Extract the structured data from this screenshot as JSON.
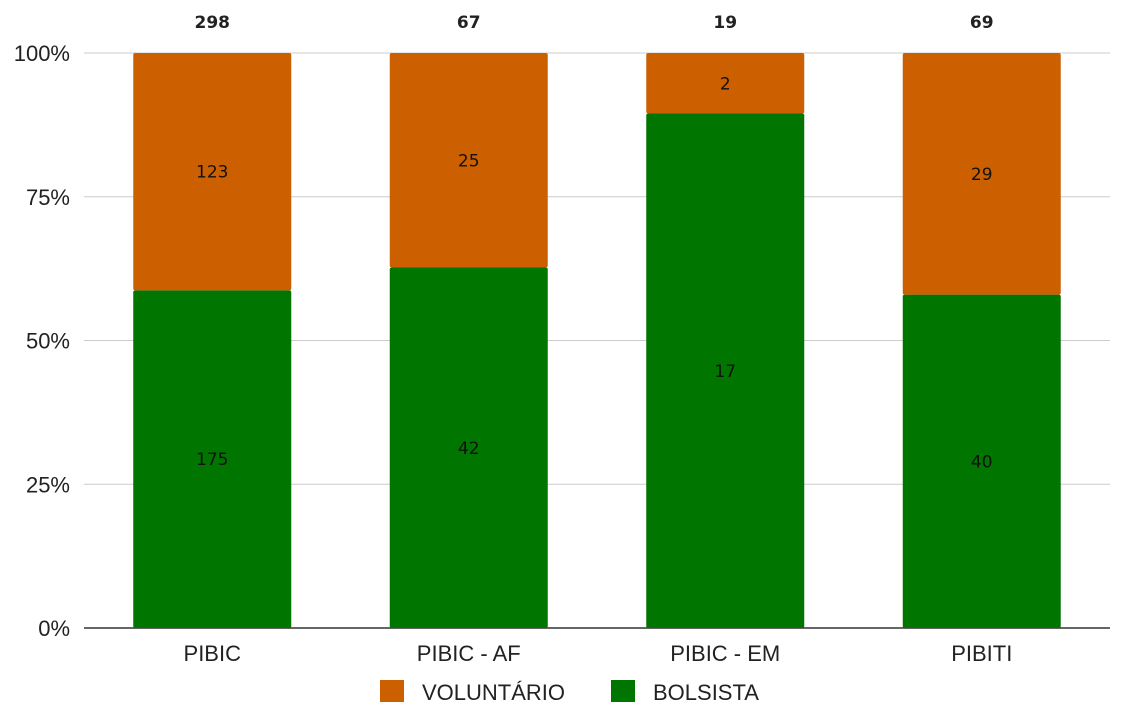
{
  "chart_data": {
    "type": "bar",
    "stacked": "percent",
    "title": "",
    "xlabel": "",
    "ylabel": "",
    "categories": [
      "PIBIC",
      "PIBIC - AF",
      "PIBIC - EM",
      "PIBITI"
    ],
    "totals": [
      "298",
      "67",
      "19",
      "69"
    ],
    "series": [
      {
        "name": "BOLSISTA",
        "color": "#007500",
        "values": [
          175,
          42,
          17,
          40
        ]
      },
      {
        "name": "VOLUNTÁRIO",
        "color": "#cc6000",
        "values": [
          123,
          25,
          2,
          29
        ]
      }
    ],
    "y_ticks": [
      "0%",
      "25%",
      "50%",
      "75%",
      "100%"
    ],
    "ylim": [
      0,
      100
    ],
    "grid": true,
    "legend": {
      "position": "bottom",
      "entries": [
        {
          "name": "VOLUNTÁRIO",
          "color": "#cc6000"
        },
        {
          "name": "BOLSISTA",
          "color": "#007500"
        }
      ]
    }
  }
}
